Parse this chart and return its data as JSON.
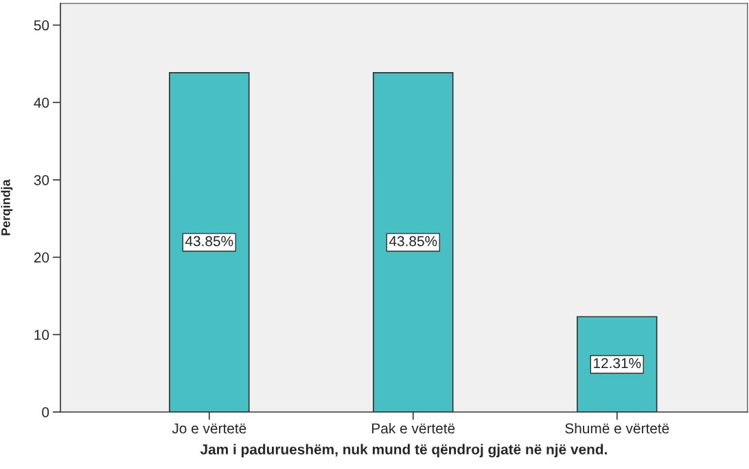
{
  "chart_data": {
    "type": "bar",
    "xlabel": "Jam i padurueshëm, nuk mund të qëndroj gjatë në një vend.",
    "ylabel": "Perqindja",
    "categories": [
      "Jo e vërtetë",
      "Pak e vërtetë",
      "Shumë e vërtetë"
    ],
    "values": [
      43.85,
      43.85,
      12.31
    ],
    "value_labels": [
      "43.85%",
      "43.85%",
      "12.31%"
    ],
    "color": "#48c0c3",
    "ylim": [
      0,
      52.8
    ],
    "yticks": [
      0,
      10,
      20,
      30,
      40,
      50
    ],
    "grid": false,
    "legend": false
  }
}
